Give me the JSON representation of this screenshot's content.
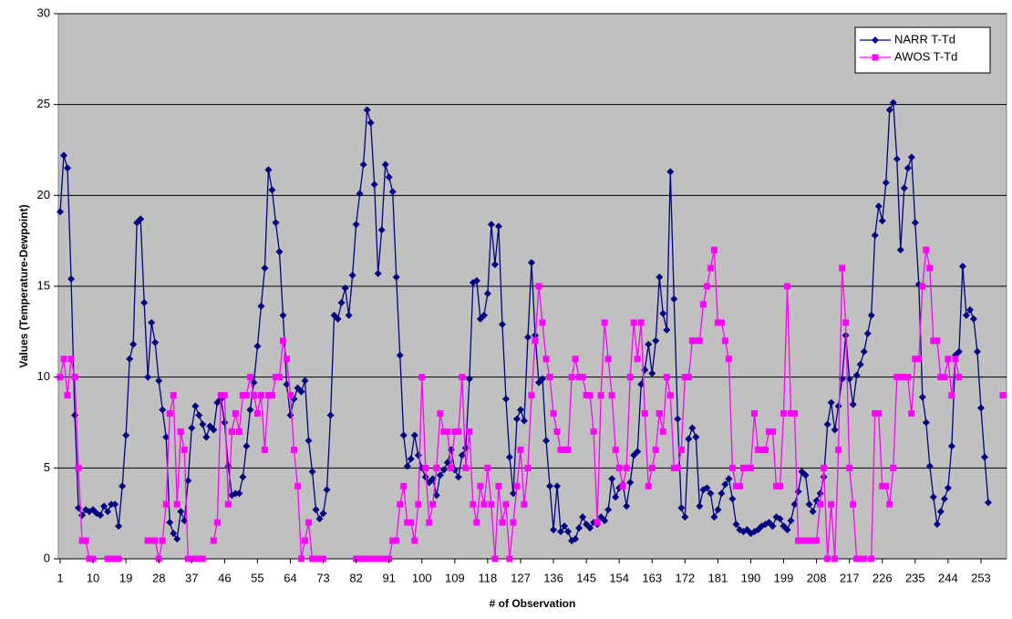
{
  "chart_data": {
    "type": "line",
    "x_label": "# of Observation",
    "y_label": "Values (Temperature-Dewpoint)",
    "xlim": [
      0.5,
      260
    ],
    "xticks": [
      1,
      10,
      19,
      28,
      37,
      46,
      55,
      64,
      73,
      82,
      91,
      100,
      109,
      118,
      127,
      136,
      145,
      154,
      163,
      172,
      181,
      190,
      199,
      208,
      217,
      226,
      235,
      244,
      253
    ],
    "ylim": [
      0,
      30
    ],
    "yticks": [
      0,
      5,
      10,
      15,
      20,
      25,
      30
    ],
    "grid": true,
    "legend": "top-right",
    "x": [
      1,
      2,
      3,
      4,
      5,
      6,
      7,
      8,
      9,
      10,
      11,
      12,
      13,
      14,
      15,
      16,
      17,
      18,
      19,
      20,
      21,
      22,
      23,
      24,
      25,
      26,
      27,
      28,
      29,
      30,
      31,
      32,
      33,
      34,
      35,
      36,
      37,
      38,
      39,
      40,
      41,
      42,
      43,
      44,
      45,
      46,
      47,
      48,
      49,
      50,
      51,
      52,
      53,
      54,
      55,
      56,
      57,
      58,
      59,
      60,
      61,
      62,
      63,
      64,
      65,
      66,
      67,
      68,
      69,
      70,
      71,
      72,
      73,
      74,
      75,
      76,
      77,
      78,
      79,
      80,
      81,
      82,
      83,
      84,
      85,
      86,
      87,
      88,
      89,
      90,
      91,
      92,
      93,
      94,
      95,
      96,
      97,
      98,
      99,
      100,
      101,
      102,
      103,
      104,
      105,
      106,
      107,
      108,
      109,
      110,
      111,
      112,
      113,
      114,
      115,
      116,
      117,
      118,
      119,
      120,
      121,
      122,
      123,
      124,
      125,
      126,
      127,
      128,
      129,
      130,
      131,
      132,
      133,
      134,
      135,
      136,
      137,
      138,
      139,
      140,
      141,
      142,
      143,
      144,
      145,
      146,
      147,
      148,
      149,
      150,
      151,
      152,
      153,
      154,
      155,
      156,
      157,
      158,
      159,
      160,
      161,
      162,
      163,
      164,
      165,
      166,
      167,
      168,
      169,
      170,
      171,
      172,
      173,
      174,
      175,
      176,
      177,
      178,
      179,
      180,
      181,
      182,
      183,
      184,
      185,
      186,
      187,
      188,
      189,
      190,
      191,
      192,
      193,
      194,
      195,
      196,
      197,
      198,
      199,
      200,
      201,
      202,
      203,
      204,
      205,
      206,
      207,
      208,
      209,
      210,
      211,
      212,
      213,
      214,
      215,
      216,
      217,
      218,
      219,
      220,
      221,
      222,
      223,
      224,
      225,
      226,
      227,
      228,
      229,
      230,
      231,
      232,
      233,
      234,
      235,
      236,
      237,
      238,
      239,
      240,
      241,
      242,
      243,
      244,
      245,
      246,
      247,
      248,
      249,
      250,
      251,
      252,
      253,
      254,
      255,
      256,
      257,
      258,
      259
    ],
    "series": [
      {
        "name": "NARR T-Td",
        "color": "#000080",
        "marker": "diamond",
        "values": [
          19.1,
          22.2,
          21.5,
          15.4,
          7.9,
          2.8,
          2.4,
          2.7,
          2.6,
          2.7,
          2.5,
          2.4,
          2.9,
          2.6,
          3.0,
          3.0,
          1.8,
          4.0,
          6.8,
          11.0,
          11.8,
          18.5,
          18.7,
          14.1,
          10.0,
          13.0,
          11.9,
          9.8,
          8.2,
          6.7,
          2.0,
          1.4,
          1.1,
          2.6,
          2.1,
          4.3,
          7.2,
          8.4,
          7.9,
          7.4,
          6.7,
          7.3,
          7.1,
          8.6,
          8.8,
          7.5,
          5.1,
          3.5,
          3.6,
          3.6,
          4.5,
          6.2,
          8.2,
          9.7,
          11.7,
          13.9,
          16.0,
          21.4,
          20.3,
          18.5,
          16.9,
          13.4,
          9.6,
          7.9,
          8.8,
          9.4,
          9.2,
          9.8,
          6.5,
          4.8,
          2.7,
          2.2,
          2.5,
          3.8,
          7.9,
          13.4,
          13.2,
          14.1,
          14.9,
          13.4,
          15.6,
          18.4,
          20.1,
          21.7,
          24.7,
          24.0,
          20.6,
          15.7,
          18.1,
          21.7,
          21.0,
          20.2,
          15.5,
          11.2,
          6.8,
          5.1,
          5.5,
          6.8,
          5.7,
          5.0,
          4.5,
          4.2,
          4.4,
          3.5,
          4.6,
          4.9,
          5.3,
          6.0,
          4.9,
          4.5,
          5.7,
          6.1,
          9.9,
          15.2,
          15.3,
          13.2,
          13.4,
          14.6,
          18.4,
          16.2,
          18.3,
          12.9,
          8.8,
          5.6,
          3.6,
          7.7,
          8.2,
          7.6,
          12.2,
          16.3,
          12.3,
          9.7,
          9.9,
          6.5,
          4.0,
          1.6,
          4.0,
          1.5,
          1.8,
          1.5,
          1.0,
          1.1,
          1.7,
          2.3,
          1.9,
          1.7,
          2.0,
          1.9,
          2.3,
          2.1,
          2.7,
          4.4,
          3.4,
          3.9,
          4.1,
          2.9,
          4.2,
          5.7,
          5.9,
          9.6,
          10.4,
          11.8,
          10.2,
          12.0,
          15.5,
          13.5,
          12.6,
          21.3,
          14.3,
          7.7,
          2.8,
          2.3,
          6.6,
          7.2,
          6.7,
          2.9,
          3.8,
          3.9,
          3.6,
          2.3,
          2.7,
          3.6,
          4.1,
          4.4,
          3.3,
          1.9,
          1.6,
          1.5,
          1.6,
          1.4,
          1.5,
          1.6,
          1.8,
          1.9,
          2.0,
          1.8,
          2.3,
          2.2,
          1.8,
          1.6,
          2.1,
          3.0,
          3.7,
          4.8,
          4.6,
          3.0,
          2.6,
          3.2,
          3.6,
          4.5,
          7.4,
          8.6,
          7.1,
          8.4,
          9.9,
          12.3,
          9.9,
          8.5,
          10.1,
          10.7,
          11.4,
          12.4,
          13.4,
          17.8,
          19.4,
          18.6,
          20.7,
          24.7,
          25.1,
          22.0,
          17.0,
          20.4,
          21.5,
          22.1,
          18.5,
          15.1,
          8.9,
          7.5,
          5.1,
          3.4,
          1.9,
          2.6,
          3.3,
          3.9,
          6.2,
          11.2,
          11.4,
          16.1,
          13.4,
          13.7,
          13.2,
          11.4,
          8.3,
          5.6,
          3.1,
          null,
          null,
          null,
          null
        ]
      },
      {
        "name": "AWOS T-Td",
        "color": "#ff00ff",
        "marker": "square",
        "values": [
          10,
          11,
          9,
          11,
          10,
          5,
          1,
          1,
          0,
          0,
          null,
          null,
          null,
          0,
          0,
          0,
          0,
          null,
          null,
          null,
          null,
          null,
          null,
          null,
          1,
          1,
          1,
          0,
          1,
          3,
          8,
          9,
          3,
          7,
          6,
          0,
          0,
          0,
          0,
          0,
          null,
          null,
          1,
          2,
          9,
          9,
          3,
          7,
          8,
          7,
          9,
          9,
          10,
          9,
          8,
          9,
          6,
          9,
          9,
          10,
          10,
          12,
          11,
          9,
          6,
          4,
          0,
          1,
          2,
          0,
          0,
          0,
          0,
          null,
          null,
          null,
          null,
          null,
          null,
          null,
          null,
          0,
          0,
          0,
          0,
          0,
          0,
          0,
          0,
          0,
          0,
          1,
          1,
          3,
          4,
          2,
          2,
          1,
          3,
          10,
          5,
          2,
          3,
          5,
          8,
          7,
          7,
          5,
          7,
          7,
          10,
          5,
          7,
          3,
          2,
          4,
          3,
          5,
          3,
          0,
          4,
          2,
          3,
          0,
          2,
          4,
          6,
          3,
          5,
          9,
          12,
          15,
          13,
          11,
          10,
          8,
          7,
          6,
          6,
          6,
          10,
          11,
          10,
          10,
          9,
          9,
          7,
          2,
          9,
          13,
          11,
          9,
          6,
          5,
          4,
          5,
          10,
          13,
          11,
          13,
          8,
          4,
          5,
          6,
          8,
          7,
          10,
          9,
          5,
          5,
          6,
          10,
          10,
          12,
          12,
          12,
          14,
          15,
          16,
          17,
          13,
          13,
          12,
          11,
          5,
          4,
          4,
          5,
          5,
          5,
          8,
          6,
          6,
          6,
          7,
          7,
          4,
          4,
          8,
          15,
          8,
          8,
          1,
          1,
          1,
          1,
          1,
          1,
          3,
          5,
          0,
          3,
          0,
          6,
          16,
          13,
          5,
          3,
          0,
          0,
          0,
          null,
          0,
          8,
          8,
          4,
          4,
          3,
          5,
          10,
          10,
          10,
          10,
          8,
          11,
          11,
          15,
          17,
          16,
          12,
          12,
          10,
          10,
          11,
          9,
          11,
          10,
          null,
          null,
          null,
          null,
          null,
          null,
          null,
          null,
          null,
          null,
          null,
          9
        ]
      }
    ]
  }
}
